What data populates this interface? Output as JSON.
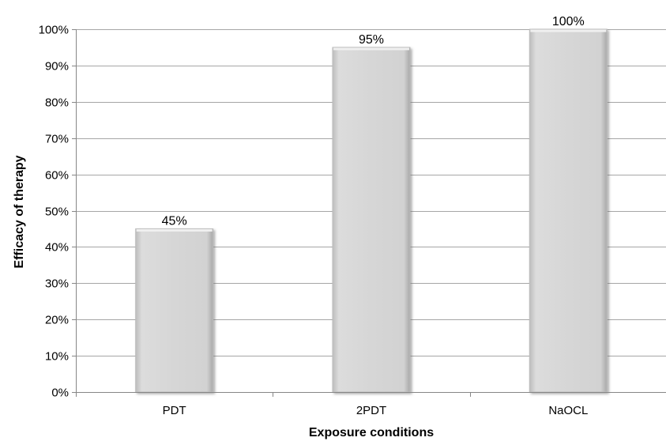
{
  "chart_data": {
    "type": "bar",
    "categories": [
      "PDT",
      "2PDT",
      "NaOCL"
    ],
    "values": [
      45,
      95,
      100
    ],
    "data_labels": [
      "45%",
      "95%",
      "100%"
    ],
    "title": "",
    "xlabel": "Exposure conditions",
    "ylabel": "Efficacy of therapy",
    "ylim": [
      0,
      100
    ],
    "yticks": [
      0,
      10,
      20,
      30,
      40,
      50,
      60,
      70,
      80,
      90,
      100
    ],
    "ytick_labels": [
      "0%",
      "10%",
      "20%",
      "30%",
      "40%",
      "50%",
      "60%",
      "70%",
      "80%",
      "90%",
      "100%"
    ],
    "grid": true,
    "legend": "none",
    "colors": {
      "bar_fill": "#d9d9d9",
      "bar_edge": "#bdbdbd",
      "bar_shadow": "#8c8c8c",
      "grid": "#a6a6a6"
    }
  }
}
